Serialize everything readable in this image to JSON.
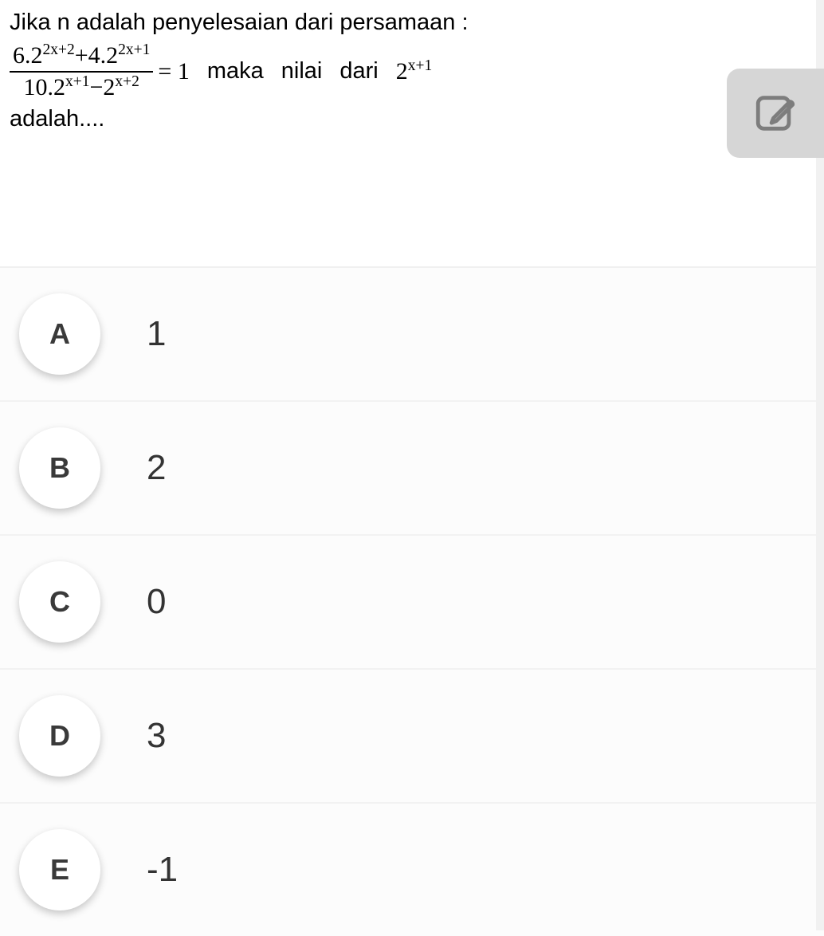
{
  "question": {
    "intro": "Jika n adalah penyelesaian dari persamaan :",
    "numerator_html": "6.2<sup>2x+2</sup>+4.2<sup>2x+1</sup>",
    "denominator_html": "10.2<sup>x+1</sup>−2<sup>x+2</sup>",
    "equals": "= 1",
    "word_maka": "maka",
    "word_nilai": "nilai",
    "word_dari": "dari",
    "expression_html": "2<sup>x+1</sup>",
    "tail": "adalah....",
    "text_color": "#000000",
    "font_size_question": 29,
    "font_size_math": 30
  },
  "edit_button": {
    "bg_color": "#d6d6d6",
    "icon_color": "#7d7d7d",
    "border_radius": 16
  },
  "options": [
    {
      "letter": "A",
      "value": "1"
    },
    {
      "letter": "B",
      "value": "2"
    },
    {
      "letter": "C",
      "value": "0"
    },
    {
      "letter": "D",
      "value": "3"
    },
    {
      "letter": "E",
      "value": "-1"
    }
  ],
  "option_styling": {
    "bubble_bg": "#ffffff",
    "bubble_shadow": "0 4px 10px rgba(0,0,0,0.22)",
    "bubble_size": 102,
    "bubble_font_size": 36,
    "bubble_text_color": "#3a3a3a",
    "value_font_size": 44,
    "value_color": "#333333",
    "row_bg": "#fcfcfc",
    "row_border": "#f2f2f2"
  }
}
